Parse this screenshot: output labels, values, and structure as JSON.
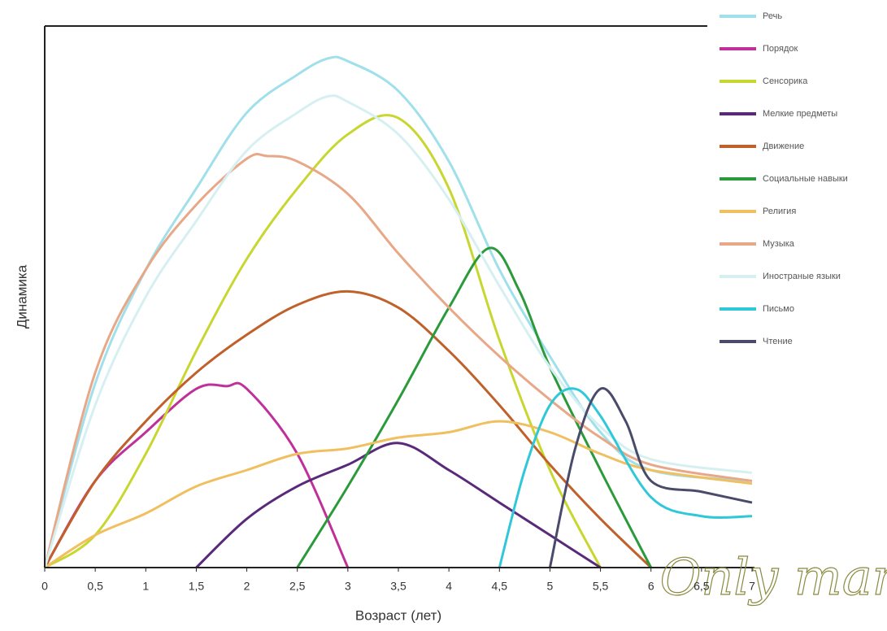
{
  "chart_data": {
    "type": "line",
    "y_label": "Динамика",
    "x_label": "Возраст (лет)",
    "watermark": "Only mama",
    "xlim": [
      0,
      7
    ],
    "ylim": [
      0,
      100
    ],
    "xticks": [
      0,
      {
        "value": 0.5,
        "label": "0,5"
      },
      1,
      {
        "value": 1.5,
        "label": "1,5"
      },
      2,
      {
        "value": 2.5,
        "label": "2,5"
      },
      3,
      {
        "value": 3.5,
        "label": "3,5"
      },
      4,
      {
        "value": 4.5,
        "label": "4,5"
      },
      5,
      {
        "value": 5.5,
        "label": "5,5"
      },
      6,
      {
        "value": 6.5,
        "label": "6,5"
      },
      7
    ],
    "legend": "right",
    "series": [
      {
        "name": "Речь",
        "color": "#9fe0ea",
        "x": [
          0,
          0.5,
          1,
          1.5,
          2,
          2.5,
          2.8,
          3,
          3.5,
          4,
          4.5,
          5,
          5.5,
          6,
          7
        ],
        "values": [
          0,
          34,
          55,
          70,
          84,
          91,
          94,
          93.5,
          88,
          75,
          55,
          39,
          25,
          18,
          16
        ]
      },
      {
        "name": "Порядок",
        "color": "#c0309a",
        "x": [
          0,
          0.5,
          1,
          1.5,
          1.8,
          2,
          2.5,
          3
        ],
        "values": [
          0,
          16,
          25,
          33,
          33.5,
          33,
          21,
          0
        ]
      },
      {
        "name": "Сенсорика",
        "color": "#c8d630",
        "x": [
          0,
          0.5,
          1,
          1.5,
          2,
          2.5,
          3,
          3.5,
          4,
          4.5,
          5,
          5.5
        ],
        "values": [
          0,
          6,
          21,
          40,
          57,
          70,
          80,
          83,
          70,
          42,
          18,
          0
        ]
      },
      {
        "name": "Мелкие предметы",
        "color": "#5a2a7a",
        "x": [
          1.5,
          2,
          2.5,
          3,
          3.5,
          4,
          4.5,
          5,
          5.5
        ],
        "values": [
          0,
          9,
          15,
          19,
          23,
          18,
          12,
          6,
          0
        ]
      },
      {
        "name": "Движение",
        "color": "#c0612b",
        "x": [
          0,
          0.5,
          1,
          1.5,
          2,
          2.5,
          3,
          3.5,
          4,
          4.5,
          5,
          5.5,
          6
        ],
        "values": [
          0,
          16,
          27,
          36,
          43,
          48.5,
          51,
          48,
          40,
          30,
          19,
          9,
          0
        ]
      },
      {
        "name": "Социальные навыки",
        "color": "#2a9a3a",
        "x": [
          2.5,
          3,
          3.5,
          4,
          4.4,
          4.7,
          5,
          5.5,
          6
        ],
        "values": [
          0,
          15,
          31,
          48,
          59,
          51,
          37,
          18,
          0
        ]
      },
      {
        "name": "Религия",
        "color": "#f0c060",
        "x": [
          0,
          0.5,
          1,
          1.5,
          2,
          2.5,
          3,
          3.5,
          4,
          4.5,
          5,
          5.5,
          6,
          7
        ],
        "values": [
          0,
          6,
          10,
          15,
          18,
          21,
          22,
          24,
          25,
          27,
          25,
          21,
          18,
          15.5
        ]
      },
      {
        "name": "Музыка",
        "color": "#e8a888",
        "x": [
          0,
          0.5,
          1,
          1.5,
          2,
          2.2,
          2.5,
          3,
          3.5,
          4,
          4.5,
          5,
          5.5,
          6,
          7
        ],
        "values": [
          0,
          36,
          55,
          67,
          75.5,
          76,
          75,
          69,
          58,
          48,
          39,
          31,
          24,
          19,
          16
        ]
      },
      {
        "name": "Иностраные языки",
        "color": "#d6f0f2",
        "x": [
          0,
          0.5,
          1,
          1.5,
          2,
          2.5,
          2.8,
          3,
          3.5,
          4,
          4.5,
          5,
          5.5,
          6,
          7
        ],
        "values": [
          0,
          30,
          50,
          64,
          77,
          84,
          87,
          86,
          80,
          68,
          52,
          37,
          26,
          20,
          17.5
        ]
      },
      {
        "name": "Письмо",
        "color": "#30c8d8",
        "x": [
          4.5,
          4.75,
          5,
          5.25,
          5.5,
          6,
          6.5,
          7
        ],
        "values": [
          0,
          18,
          30,
          33,
          28,
          13,
          9.5,
          9.5
        ]
      },
      {
        "name": "Чтение",
        "color": "#4a4a6a",
        "x": [
          5,
          5.25,
          5.5,
          5.75,
          6,
          6.5,
          7
        ],
        "values": [
          0,
          22,
          33,
          27,
          16,
          14,
          12
        ]
      }
    ]
  }
}
